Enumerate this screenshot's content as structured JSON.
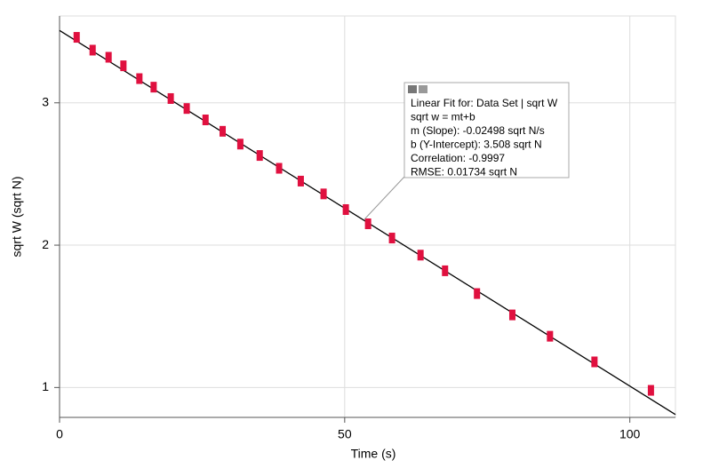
{
  "chart_data": {
    "type": "scatter",
    "xlabel": "Time (s)",
    "ylabel": "sqrt W (sqrt N)",
    "ylabel_color": "#e0103f",
    "x": [
      3.0,
      5.8,
      8.6,
      11.2,
      14.0,
      16.5,
      19.5,
      22.3,
      25.6,
      28.6,
      31.7,
      35.1,
      38.5,
      42.3,
      46.3,
      50.2,
      54.1,
      58.3,
      63.3,
      67.6,
      73.2,
      79.4,
      86.0,
      93.8,
      103.7
    ],
    "series": [
      {
        "name": "sqrt W",
        "color": "#e0103f",
        "values": [
          3.46,
          3.37,
          3.32,
          3.26,
          3.17,
          3.11,
          3.03,
          2.96,
          2.88,
          2.8,
          2.71,
          2.63,
          2.54,
          2.45,
          2.36,
          2.25,
          2.15,
          2.05,
          1.93,
          1.82,
          1.66,
          1.51,
          1.36,
          1.18,
          0.98
        ]
      }
    ],
    "fit": {
      "slope": -0.02498,
      "intercept": 3.508,
      "color": "#000000"
    },
    "annotation": [
      "Linear Fit for: Data Set | sqrt W",
      "sqrt w = mt+b",
      "m (Slope): -0.02498 sqrt N/s",
      "b (Y-Intercept): 3.508 sqrt N",
      "Correlation: -0.9997",
      "RMSE: 0.01734 sqrt N"
    ],
    "xlim": [
      0,
      108
    ],
    "ylim": [
      0.79,
      3.61
    ],
    "xticks": [
      0,
      50,
      100
    ],
    "yticks": [
      1,
      2,
      3
    ],
    "grid": true
  }
}
